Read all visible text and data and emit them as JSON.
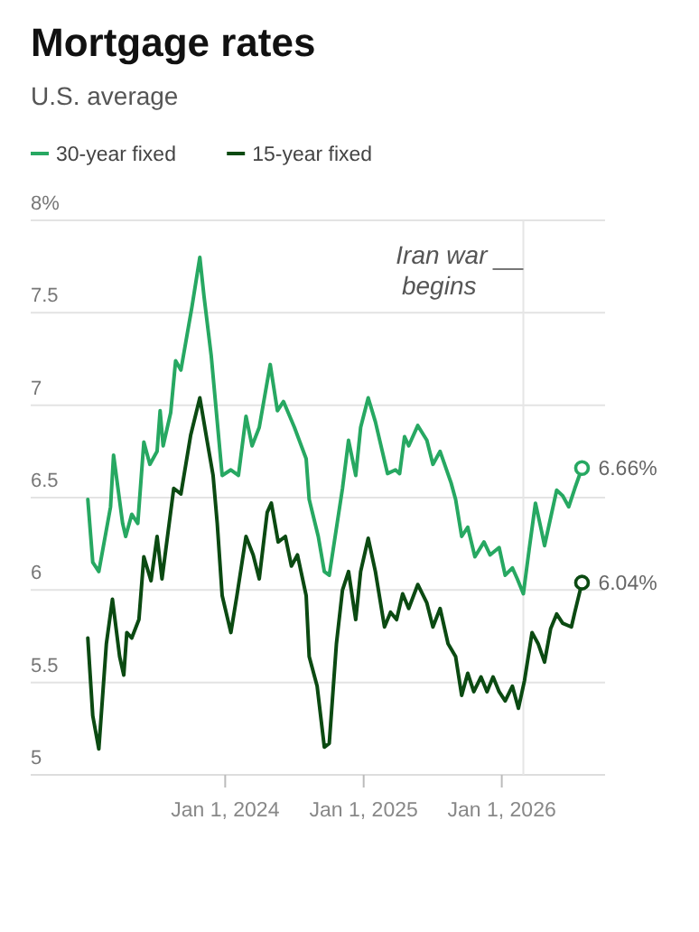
{
  "chart_data": {
    "type": "line",
    "title": "Mortgage rates",
    "subtitle": "U.S. average",
    "legend": "top left",
    "grid": "y",
    "marker": "none",
    "line_style": "solid",
    "xlim": [
      "2022-08-05",
      "2026-10-01"
    ],
    "ylim": [
      5,
      8
    ],
    "xticks": [
      {
        "value": "2024-01-01",
        "label": "Jan 1, 2024"
      },
      {
        "value": "2025-01-01",
        "label": "Jan 1, 2025"
      },
      {
        "value": "2026-01-01",
        "label": "Jan 1, 2026"
      }
    ],
    "yticks": [
      {
        "value": 5,
        "label": "5"
      },
      {
        "value": 5.5,
        "label": "5.5"
      },
      {
        "value": 6,
        "label": "6"
      },
      {
        "value": 6.5,
        "label": "6.5"
      },
      {
        "value": 7,
        "label": "7"
      },
      {
        "value": 7.5,
        "label": "7.5"
      },
      {
        "value": 8,
        "label": "8%"
      }
    ],
    "ref_lines": [
      {
        "axis": "x",
        "value": "2026-02-27",
        "label": "Iran war begins"
      }
    ],
    "annotations": [
      {
        "text": "6.66%",
        "x": "2026-08-01",
        "y": 6.66
      },
      {
        "text": "6.04%",
        "x": "2026-08-01",
        "y": 6.04
      }
    ],
    "series": [
      {
        "name": "30-year fixed",
        "color": "#27a862",
        "x": [
          "2023-01-03",
          "2023-01-16",
          "2023-02-01",
          "2023-03-04",
          "2023-03-12",
          "2023-04-05",
          "2023-04-13",
          "2023-04-29",
          "2023-05-15",
          "2023-05-31",
          "2023-06-16",
          "2023-07-05",
          "2023-07-13",
          "2023-07-21",
          "2023-08-10",
          "2023-08-23",
          "2023-09-06",
          "2023-10-05",
          "2023-10-26",
          "2023-11-06",
          "2023-11-25",
          "2023-12-24",
          "2024-01-16",
          "2024-02-05",
          "2024-02-25",
          "2024-03-12",
          "2024-03-31",
          "2024-04-29",
          "2024-05-18",
          "2024-06-03",
          "2024-07-02",
          "2024-08-02",
          "2024-08-10",
          "2024-09-03",
          "2024-09-19",
          "2024-10-02",
          "2024-11-06",
          "2024-11-22",
          "2024-12-11",
          "2024-12-24",
          "2025-01-13",
          "2025-02-01",
          "2025-03-05",
          "2025-03-26",
          "2025-04-06",
          "2025-04-19",
          "2025-04-30",
          "2025-05-24",
          "2025-06-17",
          "2025-07-03",
          "2025-07-22",
          "2025-08-20",
          "2025-09-01",
          "2025-09-17",
          "2025-10-03",
          "2025-10-22",
          "2025-11-15",
          "2025-12-01",
          "2025-12-25",
          "2026-01-10",
          "2026-01-29",
          "2026-02-11",
          "2026-02-27",
          "2026-03-15",
          "2026-03-31",
          "2026-04-16",
          "2026-04-24",
          "2026-05-10",
          "2026-05-26",
          "2026-06-11",
          "2026-06-27",
          "2026-07-13",
          "2026-08-01"
        ],
        "values": [
          6.49,
          6.15,
          6.1,
          6.45,
          6.73,
          6.36,
          6.29,
          6.41,
          6.36,
          6.8,
          6.68,
          6.75,
          6.97,
          6.78,
          6.96,
          7.24,
          7.19,
          7.53,
          7.8,
          7.59,
          7.27,
          6.62,
          6.65,
          6.62,
          6.94,
          6.78,
          6.88,
          7.22,
          6.97,
          7.02,
          6.88,
          6.71,
          6.49,
          6.29,
          6.1,
          6.08,
          6.55,
          6.81,
          6.62,
          6.88,
          7.04,
          6.91,
          6.63,
          6.65,
          6.63,
          6.83,
          6.78,
          6.89,
          6.81,
          6.68,
          6.75,
          6.58,
          6.49,
          6.29,
          6.34,
          6.18,
          6.26,
          6.19,
          6.23,
          6.08,
          6.12,
          6.06,
          5.98,
          6.23,
          6.47,
          6.32,
          6.24,
          6.39,
          6.54,
          6.51,
          6.45,
          6.55,
          6.66
        ]
      },
      {
        "name": "15-year fixed",
        "color": "#0b4a12",
        "x": [
          "2023-01-03",
          "2023-01-16",
          "2023-02-01",
          "2023-02-21",
          "2023-03-09",
          "2023-03-28",
          "2023-04-08",
          "2023-04-16",
          "2023-04-29",
          "2023-05-18",
          "2023-05-31",
          "2023-06-19",
          "2023-07-05",
          "2023-07-18",
          "2023-08-18",
          "2023-09-06",
          "2023-10-02",
          "2023-10-26",
          "2023-11-14",
          "2023-11-30",
          "2023-12-11",
          "2023-12-24",
          "2024-01-16",
          "2024-02-01",
          "2024-02-25",
          "2024-03-15",
          "2024-03-31",
          "2024-04-21",
          "2024-05-02",
          "2024-05-20",
          "2024-06-08",
          "2024-06-24",
          "2024-07-10",
          "2024-08-02",
          "2024-08-10",
          "2024-08-31",
          "2024-09-19",
          "2024-10-02",
          "2024-10-21",
          "2024-11-06",
          "2024-11-22",
          "2024-12-11",
          "2024-12-24",
          "2025-01-13",
          "2025-02-01",
          "2025-02-25",
          "2025-03-13",
          "2025-03-29",
          "2025-04-14",
          "2025-04-30",
          "2025-05-24",
          "2025-06-17",
          "2025-07-03",
          "2025-07-22",
          "2025-08-12",
          "2025-09-01",
          "2025-09-17",
          "2025-10-03",
          "2025-10-19",
          "2025-11-07",
          "2025-11-23",
          "2025-12-09",
          "2025-12-25",
          "2026-01-10",
          "2026-01-29",
          "2026-02-14",
          "2026-03-02",
          "2026-03-22",
          "2026-04-07",
          "2026-04-24",
          "2026-05-10",
          "2026-05-26",
          "2026-06-11",
          "2026-07-04",
          "2026-07-13",
          "2026-08-01"
        ],
        "values": [
          5.74,
          5.32,
          5.14,
          5.71,
          5.95,
          5.64,
          5.54,
          5.77,
          5.74,
          5.84,
          6.18,
          6.05,
          6.29,
          6.06,
          6.55,
          6.52,
          6.84,
          7.04,
          6.81,
          6.62,
          6.36,
          5.97,
          5.77,
          5.97,
          6.29,
          6.19,
          6.06,
          6.42,
          6.47,
          6.26,
          6.29,
          6.13,
          6.19,
          5.97,
          5.64,
          5.48,
          5.15,
          5.17,
          5.71,
          6.0,
          6.1,
          5.84,
          6.1,
          6.28,
          6.1,
          5.8,
          5.88,
          5.84,
          5.98,
          5.9,
          6.03,
          5.93,
          5.8,
          5.9,
          5.71,
          5.64,
          5.43,
          5.55,
          5.45,
          5.53,
          5.45,
          5.53,
          5.45,
          5.4,
          5.48,
          5.36,
          5.51,
          5.77,
          5.71,
          5.61,
          5.79,
          5.87,
          5.82,
          5.8,
          5.88,
          6.04
        ]
      }
    ]
  }
}
